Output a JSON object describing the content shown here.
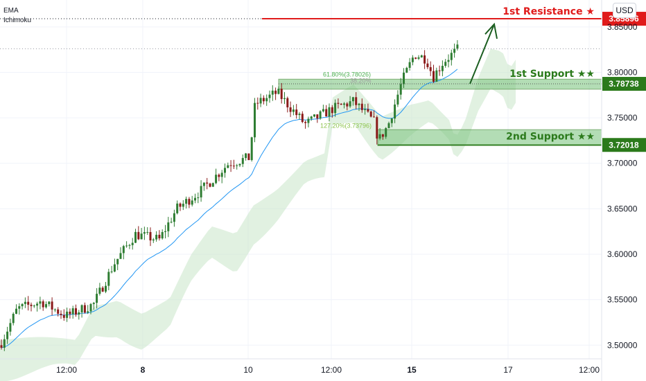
{
  "indicators": [
    "EMA",
    "Ichimoku"
  ],
  "currency_button": "USD",
  "chart_data": {
    "type": "candlestick",
    "ylim": [
      3.485,
      3.875
    ],
    "y_ticks": [
      "3.85000",
      "3.80000",
      "3.75000",
      "3.70000",
      "3.65000",
      "3.60000",
      "3.55000",
      "3.50000"
    ],
    "x_ticks": [
      "12:00",
      "8",
      "10",
      "12:00",
      "15",
      "17",
      "12:00"
    ],
    "x_tick_bold": [
      false,
      true,
      false,
      false,
      true,
      false,
      false
    ],
    "levels": [
      {
        "name": "1st Resistance ★",
        "value": 3.85896,
        "value_label": "3.85896",
        "color": "#e01b1b"
      },
      {
        "name": "1st Support ★★",
        "value": 3.78738,
        "value_label": "3.78738",
        "color": "#2b7a1b",
        "zone": [
          3.7815,
          3.7925
        ]
      },
      {
        "name": "2nd Support ★★",
        "value": 3.72018,
        "value_label": "3.72018",
        "color": "#2b7a1b",
        "zone": [
          3.7195,
          3.737
        ]
      }
    ],
    "fib_labels": [
      "61.80%(3.78026)",
      "38.20%",
      "127.20%(3.73796)"
    ],
    "current_price": 3.826,
    "candles": [],
    "ema": [],
    "cloud": []
  },
  "colors": {
    "up": "#26a69a",
    "down": "#ef5350",
    "candle_body_up": "#2e7d32",
    "candle_body_down": "#8b1a1a",
    "ema": "#2196f3",
    "cloud": "#c8e6c9",
    "zone_fill": "#81c784",
    "resistance": "#e01b1b",
    "support": "#2b7a1b"
  }
}
